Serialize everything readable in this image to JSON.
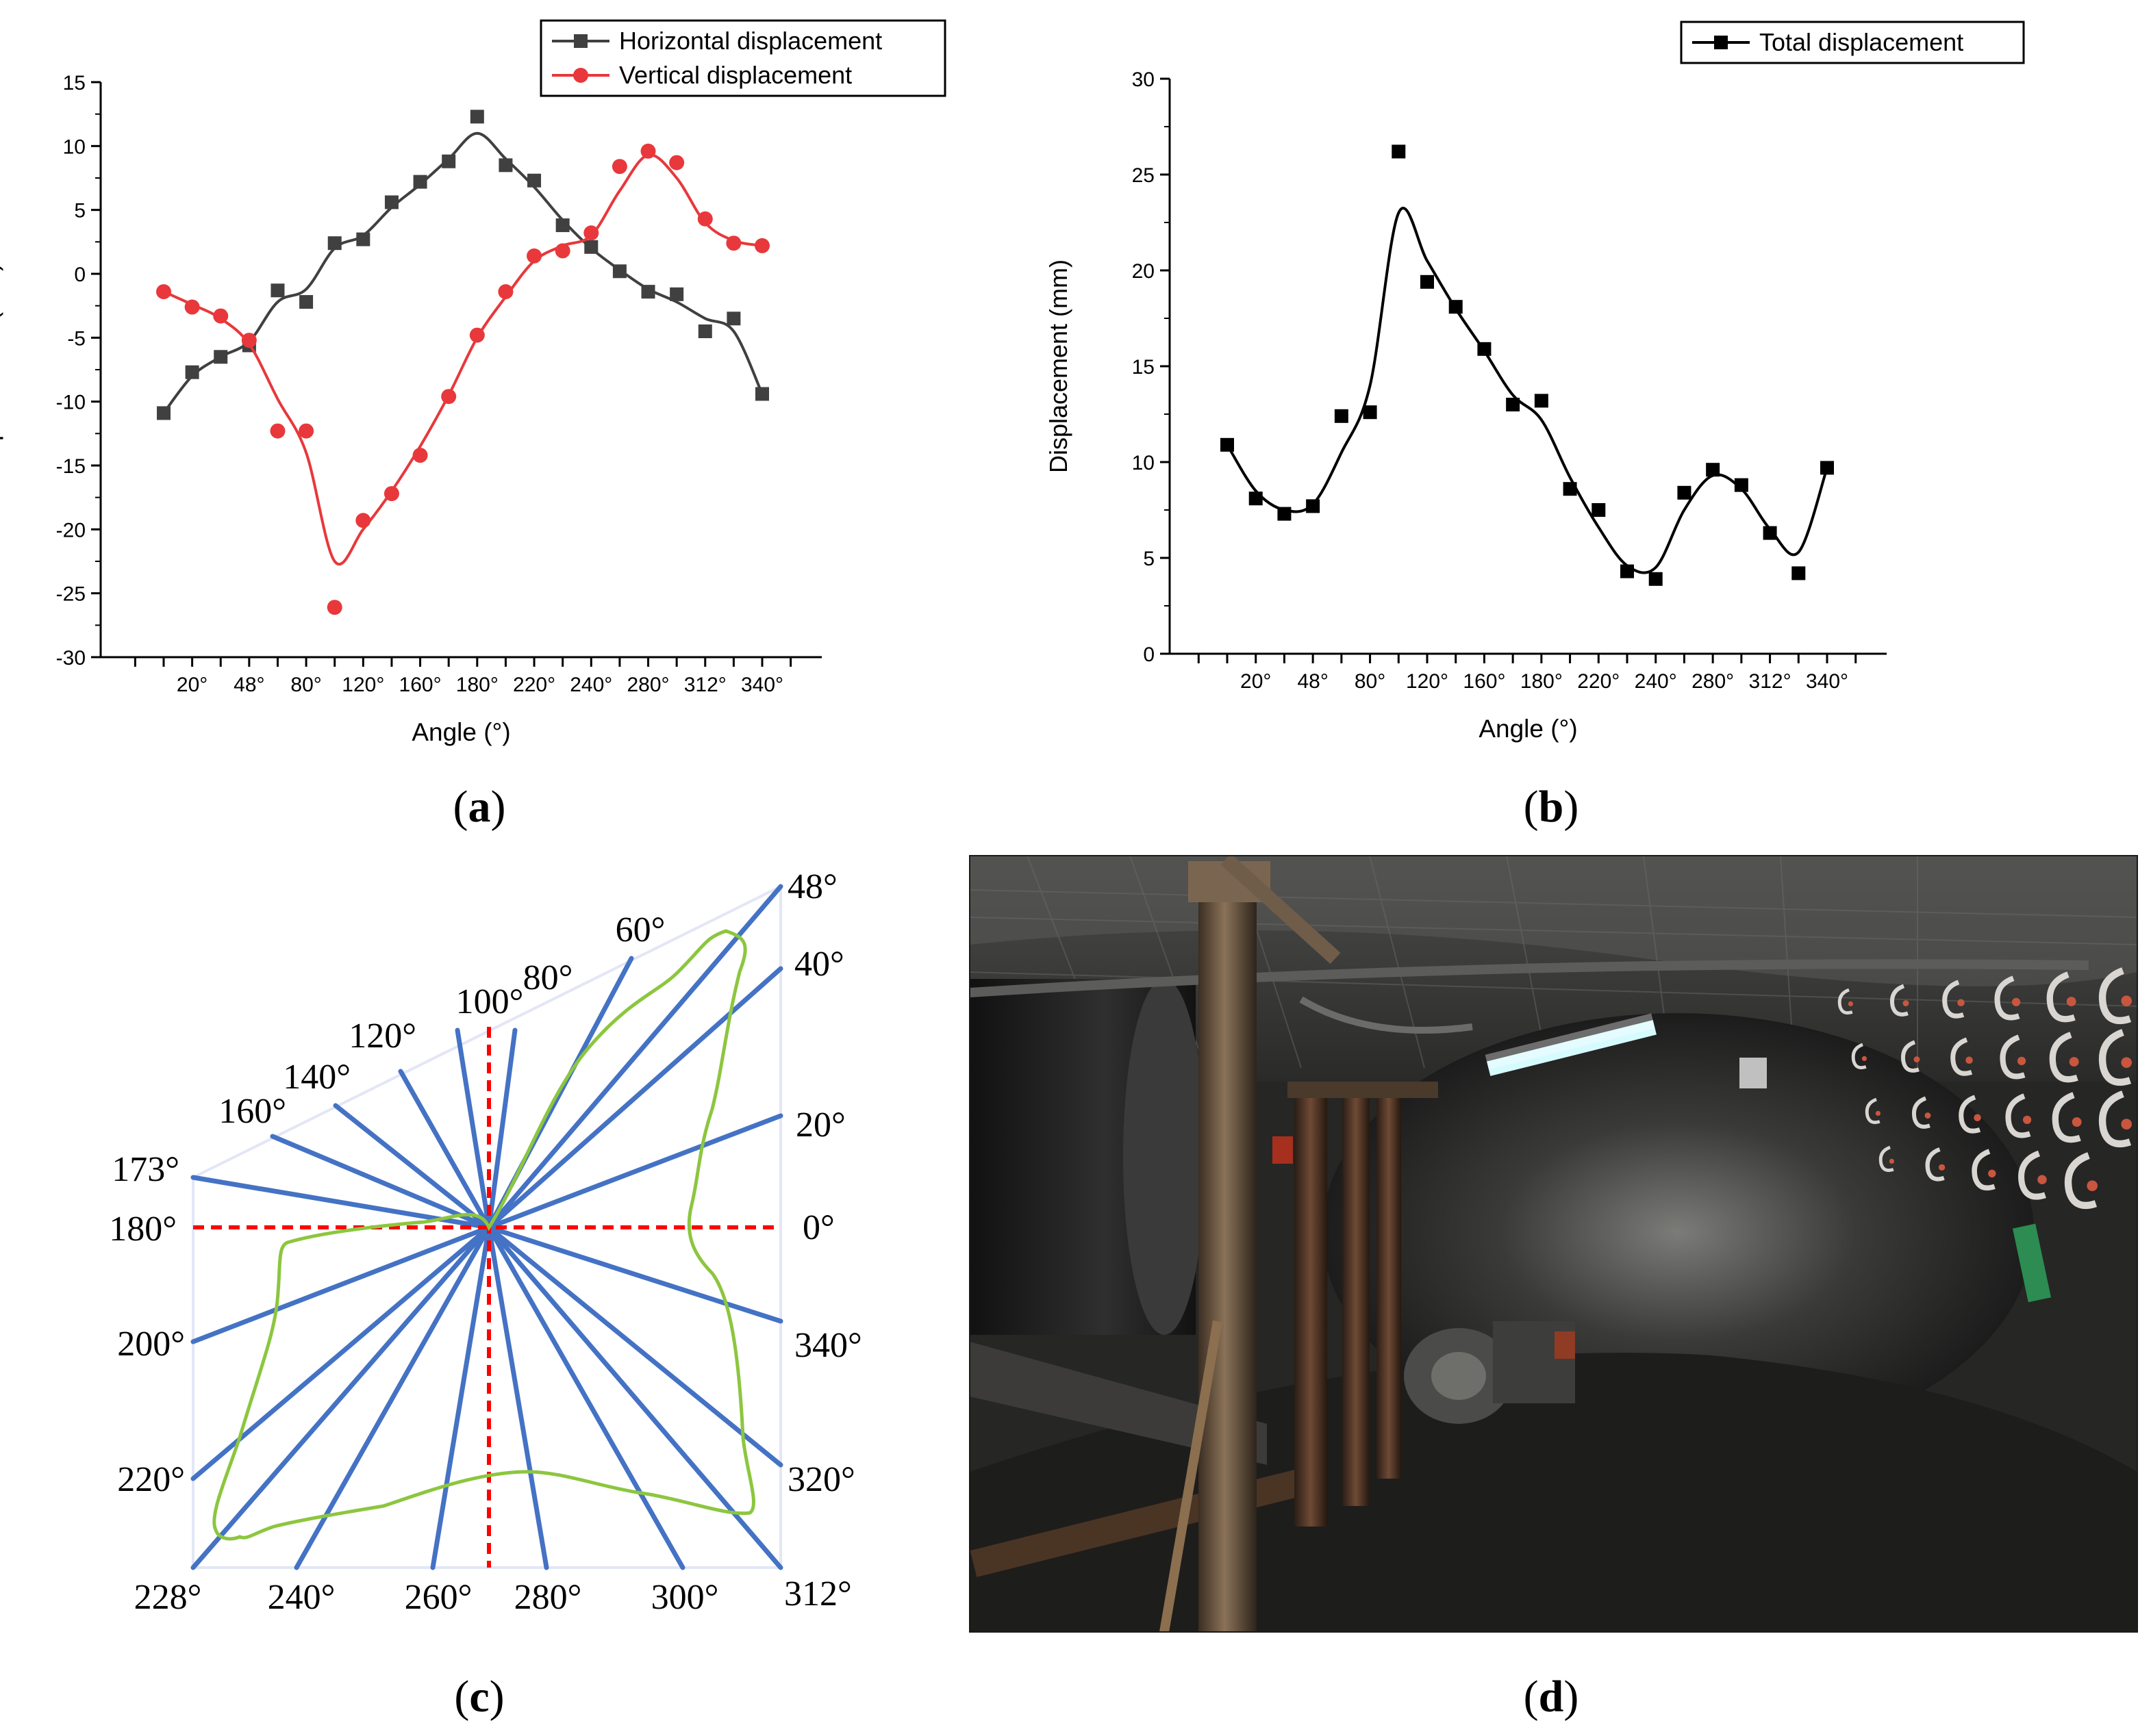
{
  "panels": {
    "a": {
      "caption": "a",
      "chart_data": {
        "type": "line",
        "xlabel": "Angle (°)",
        "ylabel": "Displacement (mm)",
        "x_tick_labels": [
          "20°",
          "48°",
          "80°",
          "120°",
          "160°",
          "180°",
          "220°",
          "240°",
          "280°",
          "312°",
          "340°"
        ],
        "ylim": [
          -30,
          15
        ],
        "yticks": [
          -30,
          -25,
          -20,
          -15,
          -10,
          -5,
          0,
          5,
          10,
          15
        ],
        "legend_position": "top-right",
        "series": [
          {
            "name": "Horizontal displacement",
            "color": "#404040",
            "marker": "square",
            "values": [
              -10.9,
              -7.7,
              -6.5,
              -5.6,
              -1.3,
              -2.2,
              2.4,
              2.7,
              5.6,
              7.2,
              8.8,
              12.3,
              8.5,
              7.3,
              3.8,
              2.1,
              0.2,
              -1.4,
              -1.6,
              -4.5,
              -3.5,
              -9.4
            ],
            "smooth": [
              -10.9,
              -8.0,
              -6.5,
              -5.3,
              -2.2,
              -1.2,
              2.0,
              3.0,
              5.2,
              7.0,
              9.0,
              11.0,
              9.0,
              6.8,
              4.2,
              2.0,
              0.3,
              -1.2,
              -2.2,
              -3.5,
              -4.5,
              -9.4
            ]
          },
          {
            "name": "Vertical displacement",
            "color": "#e8383b",
            "marker": "circle",
            "values": [
              -1.4,
              -2.6,
              -3.3,
              -5.2,
              -12.3,
              -12.3,
              -26.1,
              -19.3,
              -17.2,
              -14.2,
              -9.6,
              -4.8,
              -1.4,
              1.4,
              1.8,
              3.2,
              8.4,
              9.6,
              8.7,
              4.3,
              2.4,
              2.2
            ],
            "smooth": [
              -1.4,
              -2.4,
              -3.5,
              -5.5,
              -9.8,
              -14.0,
              -22.5,
              -20.0,
              -17.0,
              -13.5,
              -9.5,
              -5.0,
              -1.8,
              1.0,
              2.2,
              3.0,
              6.5,
              9.3,
              7.5,
              4.0,
              2.6,
              2.2
            ]
          }
        ]
      }
    },
    "b": {
      "caption": "b",
      "chart_data": {
        "type": "line",
        "xlabel": "Angle (°)",
        "ylabel": "Displacement (mm)",
        "x_tick_labels": [
          "20°",
          "48°",
          "80°",
          "120°",
          "160°",
          "180°",
          "220°",
          "240°",
          "280°",
          "312°",
          "340°"
        ],
        "ylim": [
          0,
          30
        ],
        "yticks": [
          0,
          5,
          10,
          15,
          20,
          25,
          30
        ],
        "legend_position": "top-right",
        "series": [
          {
            "name": "Total displacement",
            "color": "#000000",
            "marker": "square",
            "values": [
              10.9,
              8.1,
              7.3,
              7.7,
              12.4,
              12.6,
              26.2,
              19.4,
              18.1,
              15.9,
              13.0,
              13.2,
              8.6,
              7.5,
              4.3,
              3.9,
              8.4,
              9.6,
              8.8,
              6.3,
              4.2,
              9.7
            ],
            "smooth": [
              10.9,
              8.5,
              7.5,
              7.8,
              10.5,
              14.0,
              23.0,
              20.5,
              18.0,
              15.8,
              13.5,
              12.2,
              9.2,
              6.6,
              4.6,
              4.5,
              7.5,
              9.3,
              8.6,
              6.5,
              5.3,
              9.7
            ]
          }
        ]
      }
    },
    "c": {
      "caption": "c",
      "angle_labels": [
        "48°",
        "40°",
        "20°",
        "0°",
        "340°",
        "320°",
        "312°",
        "300°",
        "280°",
        "260°",
        "240°",
        "228°",
        "220°",
        "200°",
        "180°",
        "173°",
        "160°",
        "140°",
        "120°",
        "100°",
        "80°",
        "60°"
      ],
      "colors": {
        "rays": "#4472c4",
        "axes": "#ff0000",
        "profile": "#8cc63f",
        "frame": "#e3e6f5"
      }
    },
    "d": {
      "caption": "d",
      "colors": {
        "lamp": "#d6fbff",
        "sign": "#2c8c52"
      }
    }
  }
}
